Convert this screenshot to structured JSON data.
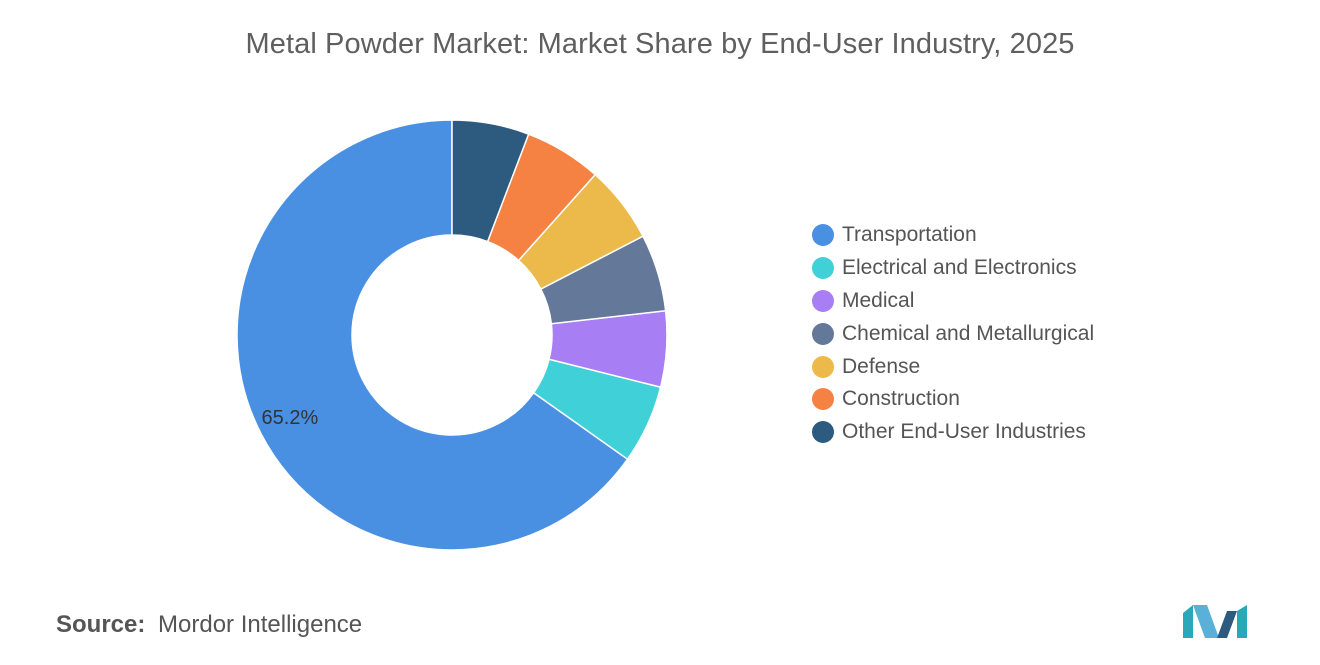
{
  "title": "Metal Powder Market: Market Share by End-User Industry, 2025",
  "source": {
    "prefix": "Source:",
    "name": "Mordor Intelligence"
  },
  "chart_data": {
    "type": "pie",
    "variant": "donut",
    "title": "Metal Powder Market: Market Share by End-User Industry, 2025",
    "legend_position": "right",
    "categories": [
      "Transportation",
      "Electrical and Electronics",
      "Medical",
      "Chemical and Metallurgical",
      "Defense",
      "Construction",
      "Other End-User Industries"
    ],
    "values": [
      65.2,
      5.9,
      5.7,
      5.8,
      5.8,
      5.8,
      5.8
    ],
    "colors": [
      "#4a90e2",
      "#3fd0d8",
      "#a87ef5",
      "#64789a",
      "#ecb94b",
      "#f58142",
      "#2d5b80"
    ],
    "data_labels": [
      {
        "category": "Transportation",
        "text": "65.2%"
      }
    ]
  }
}
